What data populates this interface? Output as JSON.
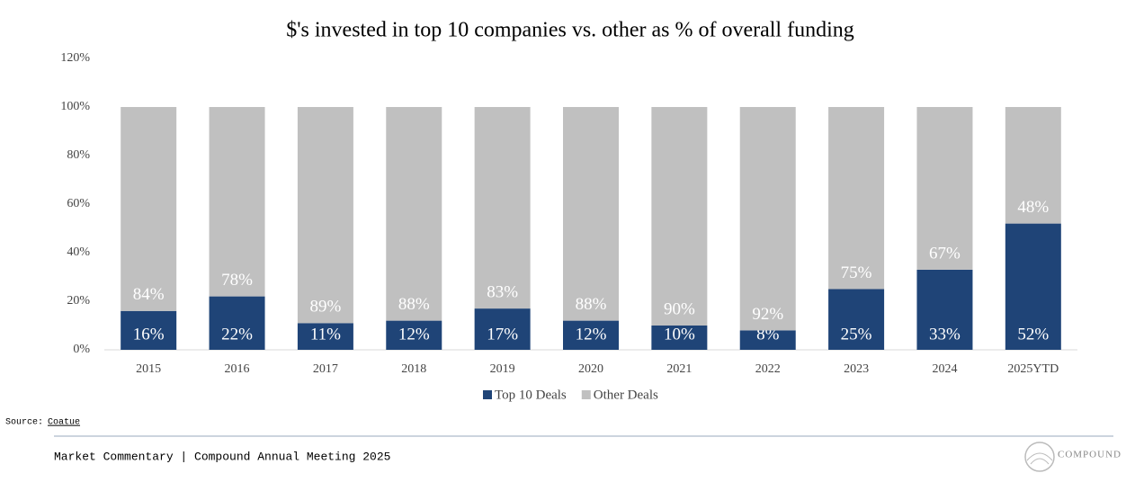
{
  "chart_data": {
    "type": "stacked_bar",
    "title": "$'s invested in top 10 companies vs. other as % of overall funding",
    "categories": [
      "2015",
      "2016",
      "2017",
      "2018",
      "2019",
      "2020",
      "2021",
      "2022",
      "2023",
      "2024",
      "2025YTD"
    ],
    "series": [
      {
        "name": "Top 10 Deals",
        "color": "#1f4477",
        "values": [
          16,
          22,
          11,
          12,
          17,
          12,
          10,
          8,
          25,
          33,
          52
        ],
        "value_labels": [
          "16%",
          "22%",
          "11%",
          "12%",
          "17%",
          "12%",
          "10%",
          "8%",
          "25%",
          "33%",
          "52%"
        ]
      },
      {
        "name": "Other Deals",
        "color": "#c0c0c0",
        "values": [
          84,
          78,
          89,
          88,
          83,
          88,
          90,
          92,
          75,
          67,
          48
        ],
        "value_labels": [
          "84%",
          "78%",
          "89%",
          "88%",
          "83%",
          "88%",
          "90%",
          "92%",
          "75%",
          "67%",
          "48%"
        ]
      }
    ],
    "ylim": [
      0,
      120
    ],
    "yticks": [
      {
        "value": 0,
        "label": "0%"
      },
      {
        "value": 20,
        "label": "20%"
      },
      {
        "value": 40,
        "label": "40%"
      },
      {
        "value": 60,
        "label": "60%"
      },
      {
        "value": 80,
        "label": "80%"
      },
      {
        "value": 100,
        "label": "100%"
      },
      {
        "value": 120,
        "label": "120%"
      }
    ],
    "grid": false,
    "legend": "bottom"
  },
  "source_label": "Source:",
  "source": "Coatue",
  "footer": "Market Commentary | Compound Annual Meeting 2025",
  "logo": "COMPOUND"
}
